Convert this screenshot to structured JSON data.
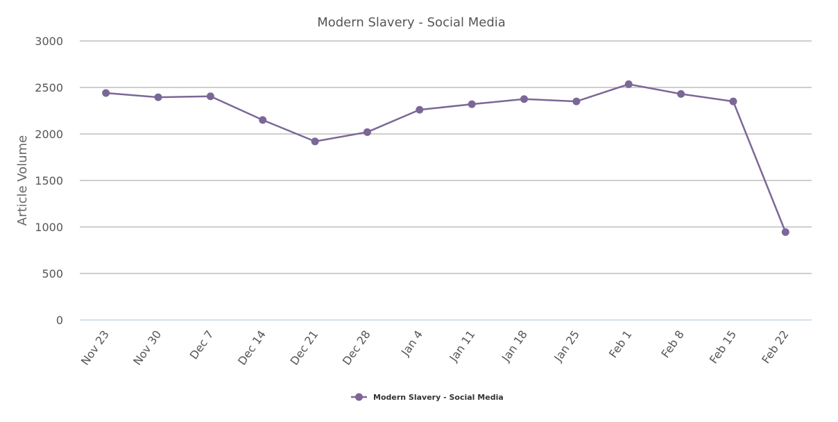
{
  "chart_data": {
    "type": "line",
    "title": "Modern Slavery - Social Media",
    "xlabel": "",
    "ylabel": "Article Volume",
    "ylim": [
      0,
      3000
    ],
    "yticks": [
      0,
      500,
      1000,
      1500,
      2000,
      2500,
      3000
    ],
    "categories": [
      "Nov 23",
      "Nov 30",
      "Dec 7",
      "Dec 14",
      "Dec 21",
      "Dec 28",
      "Jan 4",
      "Jan 11",
      "Jan 18",
      "Jan 25",
      "Feb 1",
      "Feb 8",
      "Feb 15",
      "Feb 22"
    ],
    "series": [
      {
        "name": "Modern Slavery - Social Media",
        "color": "#7b6797",
        "values": [
          2440,
          2395,
          2405,
          2150,
          1920,
          2020,
          2260,
          2320,
          2375,
          2350,
          2535,
          2430,
          2350,
          945
        ]
      }
    ],
    "grid": true,
    "legend_position": "bottom-center"
  }
}
